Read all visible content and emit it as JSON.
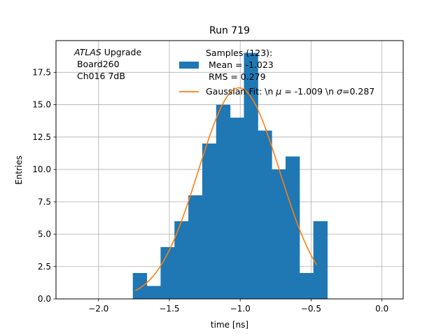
{
  "chart_data": {
    "type": "bar",
    "title": "Run 719",
    "xlabel": "time [ns]",
    "ylabel": "Entries",
    "xlim": [
      -2.3,
      0.15
    ],
    "ylim": [
      0,
      19.95
    ],
    "grid": true,
    "x_ticks": [
      -2.0,
      -1.5,
      -1.0,
      -0.5,
      0.0
    ],
    "x_tick_labels": [
      "−2.0",
      "−1.5",
      "−1.0",
      "−0.5",
      "0.0"
    ],
    "y_ticks": [
      0.0,
      2.5,
      5.0,
      7.5,
      10.0,
      12.5,
      15.0,
      17.5
    ],
    "y_tick_labels": [
      "0.0",
      "2.5",
      "5.0",
      "7.5",
      "10.0",
      "12.5",
      "15.0",
      "17.5"
    ],
    "annotation": {
      "italic": "ATLAS",
      "line1_rest": " Upgrade",
      "line2": " Board260",
      "line3": " Ch016 7dB"
    },
    "legend": {
      "placement": "top-center",
      "samples_line1": "Samples (123):",
      "samples_line2": " Mean = -1.023",
      "samples_line3": " RMS = 0.279",
      "fit_label_a": "Gaussian Fit: \\n ",
      "fit_mu": "μ",
      "fit_label_b": " = -1.009 \\n ",
      "fit_sigma": "σ",
      "fit_label_c": "=0.287"
    },
    "histogram": {
      "name": "Samples (123)",
      "color": "#1f77b4",
      "bin_edges": [
        -1.758,
        -1.66,
        -1.562,
        -1.464,
        -1.366,
        -1.268,
        -1.17,
        -1.072,
        -0.974,
        -0.876,
        -0.778,
        -0.68,
        -0.582,
        -0.484,
        -0.386
      ],
      "values": [
        2,
        1,
        4,
        6,
        8,
        12,
        15,
        14,
        19,
        13,
        10,
        11,
        2,
        6
      ]
    },
    "fit": {
      "name": "Gaussian Fit",
      "color": "#ff7f0e",
      "amplitude": 16.3,
      "mu": -1.009,
      "sigma": 0.287,
      "x_range": [
        -1.74,
        -0.46
      ]
    }
  }
}
